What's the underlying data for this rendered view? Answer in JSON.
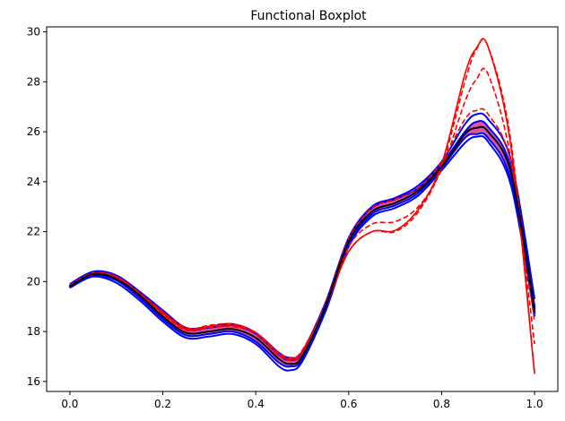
{
  "chart_data": {
    "type": "line",
    "title": "Functional Boxplot",
    "xlabel": "",
    "ylabel": "",
    "xlim": [
      -0.05,
      1.05
    ],
    "ylim": [
      15.6,
      30.2
    ],
    "xticks": [
      0.0,
      0.2,
      0.4,
      0.6,
      0.8,
      1.0
    ],
    "xtick_labels": [
      "0.0",
      "0.2",
      "0.4",
      "0.6",
      "0.8",
      "1.0"
    ],
    "yticks": [
      16,
      18,
      20,
      22,
      24,
      26,
      28,
      30
    ],
    "ytick_labels": [
      "16",
      "18",
      "20",
      "22",
      "24",
      "26",
      "28",
      "30"
    ],
    "grid": false,
    "x": [
      0.0,
      0.05,
      0.1,
      0.15,
      0.2,
      0.25,
      0.3,
      0.35,
      0.4,
      0.45,
      0.475,
      0.5,
      0.55,
      0.6,
      0.65,
      0.7,
      0.75,
      0.8,
      0.85,
      0.875,
      0.9,
      0.95,
      1.0
    ],
    "band": {
      "upper": [
        19.85,
        20.35,
        20.2,
        19.55,
        18.75,
        18.1,
        18.15,
        18.25,
        17.9,
        17.05,
        16.85,
        17.15,
        19.1,
        21.7,
        22.95,
        23.3,
        23.75,
        24.7,
        26.0,
        26.4,
        26.2,
        24.5,
        19.0
      ],
      "lower": [
        19.8,
        20.25,
        20.05,
        19.35,
        18.5,
        17.85,
        17.9,
        18.0,
        17.6,
        16.75,
        16.6,
        16.9,
        18.9,
        21.5,
        22.7,
        23.05,
        23.55,
        24.55,
        25.75,
        25.9,
        25.75,
        24.0,
        18.7
      ]
    },
    "median": [
      19.8,
      20.3,
      20.1,
      19.45,
      18.6,
      17.95,
      18.0,
      18.1,
      17.75,
      16.9,
      16.7,
      17.0,
      19.0,
      21.6,
      22.8,
      23.15,
      23.65,
      24.6,
      25.9,
      26.15,
      26.0,
      24.3,
      18.8
    ],
    "envelope_upper": [
      19.9,
      20.4,
      20.25,
      19.6,
      18.85,
      18.15,
      18.2,
      18.3,
      17.95,
      17.15,
      16.95,
      17.2,
      19.15,
      21.75,
      23.0,
      23.35,
      23.85,
      24.8,
      26.3,
      26.7,
      26.5,
      24.8,
      19.3
    ],
    "envelope_lower": [
      19.75,
      20.2,
      19.95,
      19.25,
      18.4,
      17.75,
      17.8,
      17.9,
      17.5,
      16.6,
      16.45,
      16.8,
      18.8,
      21.4,
      22.6,
      22.95,
      23.45,
      24.45,
      25.55,
      25.8,
      25.6,
      23.8,
      18.6
    ],
    "outliers": [
      {
        "style": "dashed",
        "values": [
          19.8,
          20.3,
          20.2,
          19.5,
          18.7,
          18.05,
          18.15,
          18.2,
          17.9,
          17.1,
          16.9,
          17.2,
          19.0,
          21.2,
          22.0,
          22.0,
          22.8,
          24.6,
          28.0,
          29.3,
          29.4,
          25.5,
          16.3
        ]
      },
      {
        "style": "dashed",
        "values": [
          19.8,
          20.3,
          20.15,
          19.5,
          18.7,
          18.1,
          18.25,
          18.3,
          17.95,
          17.05,
          16.85,
          17.1,
          19.0,
          21.4,
          22.3,
          22.4,
          23.0,
          24.5,
          27.2,
          28.1,
          28.3,
          24.8,
          17.5
        ]
      },
      {
        "style": "dashed",
        "values": [
          19.85,
          20.35,
          20.2,
          19.55,
          18.8,
          18.15,
          18.2,
          18.3,
          17.95,
          17.15,
          16.95,
          17.25,
          19.1,
          21.7,
          22.95,
          23.3,
          23.75,
          24.8,
          26.5,
          26.85,
          26.7,
          24.7,
          18.4
        ]
      },
      {
        "style": "solid",
        "values": [
          19.8,
          20.3,
          20.2,
          19.5,
          18.75,
          18.1,
          18.2,
          18.25,
          17.95,
          17.1,
          16.9,
          17.2,
          19.0,
          21.2,
          22.0,
          22.05,
          22.9,
          24.7,
          28.3,
          29.35,
          29.4,
          25.3,
          16.3
        ]
      }
    ],
    "colors": {
      "band_fill": "#e055a2",
      "median": "#000000",
      "envelope": "#0000ff",
      "outlier": "#ff0000",
      "axes": "#000000"
    }
  }
}
